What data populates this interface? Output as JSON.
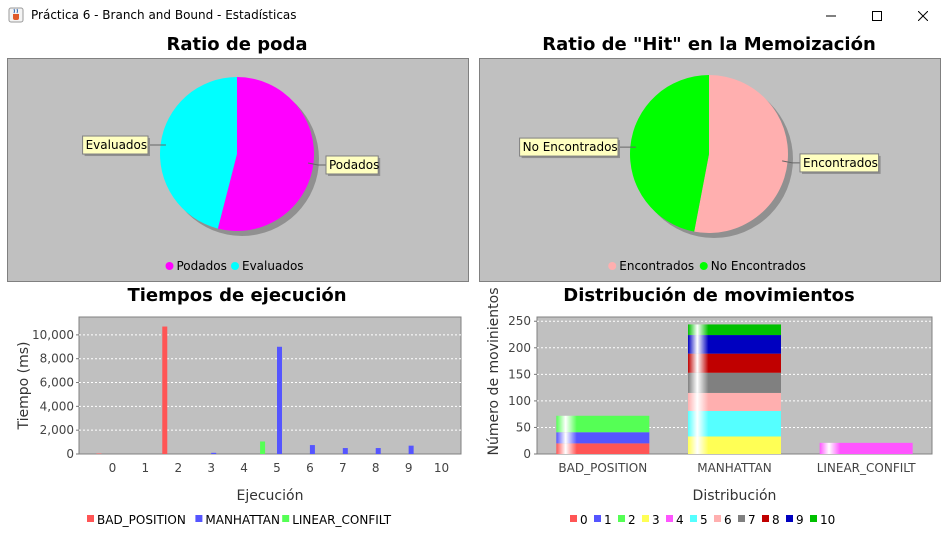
{
  "window": {
    "title": "Práctica 6 - Branch and Bound - Estadísticas",
    "icon": "java-cup-icon",
    "controls": [
      "minimize",
      "maximize",
      "close"
    ]
  },
  "chart_data": [
    {
      "type": "pie",
      "title": "Ratio de poda",
      "labels": [
        "Podados",
        "Evaluados"
      ],
      "values": [
        54,
        46
      ],
      "colors": [
        "#ff00ff",
        "#00ffff"
      ],
      "legend": "bottom"
    },
    {
      "type": "pie",
      "title": "Ratio de \"Hit\" en la Memoización",
      "labels": [
        "Encontrados",
        "No Encontrados"
      ],
      "values": [
        53,
        47
      ],
      "colors": [
        "#ffafaf",
        "#00ff00"
      ],
      "legend": "bottom"
    },
    {
      "type": "bar",
      "title": "Tiempos de ejecución",
      "xlabel": "Ejecución",
      "ylabel": "Tiempo (ms)",
      "categories": [
        "0",
        "1",
        "2",
        "3",
        "4",
        "5",
        "6",
        "7",
        "8",
        "9",
        "10"
      ],
      "ylim": [
        0,
        11500
      ],
      "yticks": [
        "0",
        "2,000",
        "4,000",
        "6,000",
        "8,000",
        "10,000"
      ],
      "series": [
        {
          "name": "BAD_POSITION",
          "color": "#ff5555",
          "values": [
            40,
            0,
            10700,
            0,
            0,
            0,
            0,
            0,
            0,
            0,
            0
          ]
        },
        {
          "name": "MANHATTAN",
          "color": "#5555ff",
          "values": [
            0,
            0,
            0,
            100,
            0,
            9000,
            750,
            500,
            500,
            700,
            0
          ]
        },
        {
          "name": "LINEAR_CONFILT",
          "color": "#55ff55",
          "values": [
            0,
            0,
            0,
            0,
            1050,
            0,
            0,
            0,
            0,
            0,
            0
          ]
        }
      ],
      "grid": true,
      "legend": "bottom"
    },
    {
      "type": "bar",
      "stacked": true,
      "title": "Distribución de movimientos",
      "xlabel": "Distribución",
      "ylabel": "Número de movinientos",
      "categories": [
        "BAD_POSITION",
        "MANHATTAN",
        "LINEAR_CONFILT"
      ],
      "ylim": [
        0,
        258
      ],
      "yticks": [
        "0",
        "25",
        "50",
        "75",
        "100",
        "125",
        "150",
        "175",
        "200",
        "225",
        "250"
      ],
      "series": [
        {
          "name": "0",
          "color": "#ff5555",
          "values": [
            20,
            0,
            0
          ]
        },
        {
          "name": "1",
          "color": "#5555ff",
          "values": [
            21,
            0,
            0
          ]
        },
        {
          "name": "2",
          "color": "#55ff55",
          "values": [
            31,
            0,
            0
          ]
        },
        {
          "name": "3",
          "color": "#ffff55",
          "values": [
            0,
            33,
            0
          ]
        },
        {
          "name": "4",
          "color": "#ff55ff",
          "values": [
            0,
            0,
            21
          ]
        },
        {
          "name": "5",
          "color": "#55ffff",
          "values": [
            0,
            48,
            0
          ]
        },
        {
          "name": "6",
          "color": "#ffafaf",
          "values": [
            0,
            34,
            0
          ]
        },
        {
          "name": "7",
          "color": "#808080",
          "values": [
            0,
            38,
            0
          ]
        },
        {
          "name": "8",
          "color": "#c00000",
          "values": [
            0,
            36,
            0
          ]
        },
        {
          "name": "9",
          "color": "#0000c0",
          "values": [
            0,
            35,
            0
          ]
        },
        {
          "name": "10",
          "color": "#00c000",
          "values": [
            0,
            20,
            0
          ]
        }
      ],
      "grid": true,
      "legend": "bottom"
    }
  ]
}
